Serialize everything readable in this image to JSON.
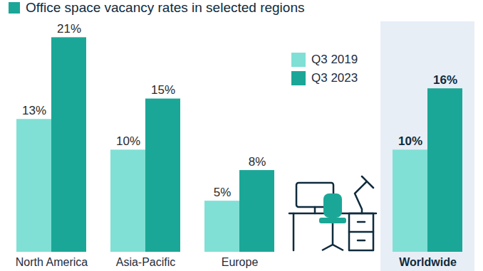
{
  "chart_data": {
    "type": "bar",
    "title": "Office space vacancy rates in selected regions",
    "categories": [
      "North America",
      "Asia-Pacific",
      "Europe",
      null,
      "Worldwide"
    ],
    "series": [
      {
        "name": "Q3 2019",
        "color": "#80e0d5",
        "values": [
          13,
          10,
          5,
          null,
          10
        ],
        "value_labels": [
          "13%",
          "10%",
          "5%",
          null,
          "10%"
        ]
      },
      {
        "name": "Q3 2023",
        "color": "#1ba797",
        "values": [
          21,
          15,
          8,
          null,
          16
        ],
        "value_labels": [
          "21%",
          "15%",
          "8%",
          null,
          "16%"
        ]
      }
    ],
    "ylim": [
      0,
      22
    ],
    "data_labels": true,
    "tick_labels": "x",
    "legend": "right"
  }
}
